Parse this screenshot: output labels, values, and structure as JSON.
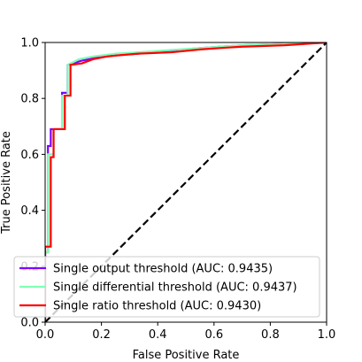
{
  "chart_data": {
    "type": "line",
    "title": "",
    "xlabel": "False Positive Rate",
    "ylabel": "True Positive Rate",
    "xlim": [
      0.0,
      1.0
    ],
    "ylim": [
      0.0,
      1.0
    ],
    "xticks": [
      "0.0",
      "0.2",
      "0.4",
      "0.6",
      "0.8",
      "1.0"
    ],
    "yticks": [
      "0.0",
      "0.2",
      "0.4",
      "0.6",
      "0.8",
      "1.0"
    ],
    "grid": false,
    "legend_position": "lower-right",
    "series": [
      {
        "name": "Single output threshold (AUC: 0.9435)",
        "color": "#7f00ff",
        "x": [
          0.0,
          0.0,
          0.01,
          0.01,
          0.02,
          0.02,
          0.06,
          0.06,
          0.08,
          0.08,
          0.13,
          0.18,
          0.25,
          0.33,
          0.43,
          0.55,
          0.7,
          0.85,
          1.0
        ],
        "y": [
          0.0,
          0.25,
          0.25,
          0.63,
          0.63,
          0.69,
          0.69,
          0.82,
          0.82,
          0.92,
          0.935,
          0.945,
          0.955,
          0.96,
          0.97,
          0.98,
          0.99,
          0.995,
          1.0
        ]
      },
      {
        "name": "Single differential threshold (AUC: 0.9437)",
        "color": "#80ffb4",
        "x": [
          0.0,
          0.0,
          0.01,
          0.01,
          0.03,
          0.03,
          0.06,
          0.06,
          0.08,
          0.08,
          0.12,
          0.17,
          0.25,
          0.33,
          0.43,
          0.55,
          0.7,
          0.85,
          1.0
        ],
        "y": [
          0.0,
          0.25,
          0.25,
          0.6,
          0.6,
          0.69,
          0.69,
          0.81,
          0.81,
          0.92,
          0.94,
          0.95,
          0.96,
          0.965,
          0.972,
          0.98,
          0.99,
          0.995,
          1.0
        ]
      },
      {
        "name": "Single ratio threshold (AUC: 0.9430)",
        "color": "#ff0000",
        "x": [
          0.0,
          0.0,
          0.02,
          0.02,
          0.03,
          0.03,
          0.07,
          0.07,
          0.09,
          0.09,
          0.13,
          0.17,
          0.22,
          0.27,
          0.33,
          0.45,
          0.55,
          0.62,
          0.7,
          0.85,
          1.0
        ],
        "y": [
          0.0,
          0.27,
          0.27,
          0.59,
          0.59,
          0.69,
          0.69,
          0.81,
          0.81,
          0.92,
          0.925,
          0.94,
          0.95,
          0.955,
          0.96,
          0.965,
          0.975,
          0.98,
          0.985,
          0.99,
          1.0
        ]
      }
    ],
    "reference_line": {
      "color": "#000000",
      "style": "dashed",
      "x": [
        0.0,
        1.0
      ],
      "y": [
        0.0,
        1.0
      ]
    }
  }
}
